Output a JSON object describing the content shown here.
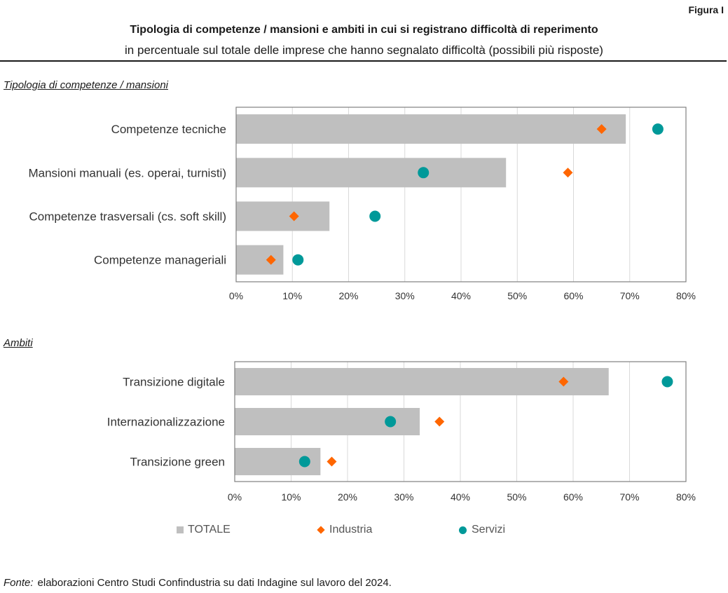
{
  "figure_label": "Figura I",
  "title": "Tipologia di competenze / mansioni e ambiti in cui si registrano difficoltà di reperimento",
  "subtitle": "in percentuale sul totale delle imprese che hanno segnalato difficoltà (possibili più risposte)",
  "colors": {
    "totale": "#bfbfbf",
    "industria": "#ff6600",
    "servizi": "#009999",
    "grid": "#d9d9d9",
    "frame": "#808080"
  },
  "legend": {
    "totale": "TOTALE",
    "industria": "Industria",
    "servizi": "Servizi"
  },
  "source": {
    "label": "Fonte:",
    "text": "elaborazioni Centro Studi Confindustria su dati Indagine sul lavoro del 2024."
  },
  "chart_data": [
    {
      "type": "bar",
      "section_title": "Tipologia di competenze / mansioni",
      "categories": [
        "Competenze tecniche",
        "Mansioni manuali (es. operai, turnisti)",
        "Competenze trasversali (cs. soft skill)",
        "Competenze manageriali"
      ],
      "series": [
        {
          "name": "TOTALE",
          "marker": "bar",
          "values": [
            69.3,
            48,
            16.6,
            8.4
          ]
        },
        {
          "name": "Industria",
          "marker": "diamond",
          "values": [
            65,
            59,
            10.3,
            6.2
          ]
        },
        {
          "name": "Servizi",
          "marker": "circle",
          "values": [
            75,
            33.3,
            24.7,
            11
          ]
        }
      ],
      "xlim": [
        0,
        80
      ],
      "ticks": [
        "0%",
        "10%",
        "20%",
        "30%",
        "40%",
        "50%",
        "60%",
        "70%",
        "80%"
      ]
    },
    {
      "type": "bar",
      "section_title": "Ambiti",
      "categories": [
        "Transizione digitale",
        "Internazionalizzazione",
        "Transizione green"
      ],
      "series": [
        {
          "name": "TOTALE",
          "marker": "bar",
          "values": [
            66.3,
            32.8,
            15.2
          ]
        },
        {
          "name": "Industria",
          "marker": "diamond",
          "values": [
            58.3,
            36.3,
            17.2
          ]
        },
        {
          "name": "Servizi",
          "marker": "circle",
          "values": [
            76.7,
            27.6,
            12.4
          ]
        }
      ],
      "xlim": [
        0,
        80
      ],
      "ticks": [
        "0%",
        "10%",
        "20%",
        "30%",
        "40%",
        "50%",
        "60%",
        "70%",
        "80%"
      ]
    }
  ]
}
